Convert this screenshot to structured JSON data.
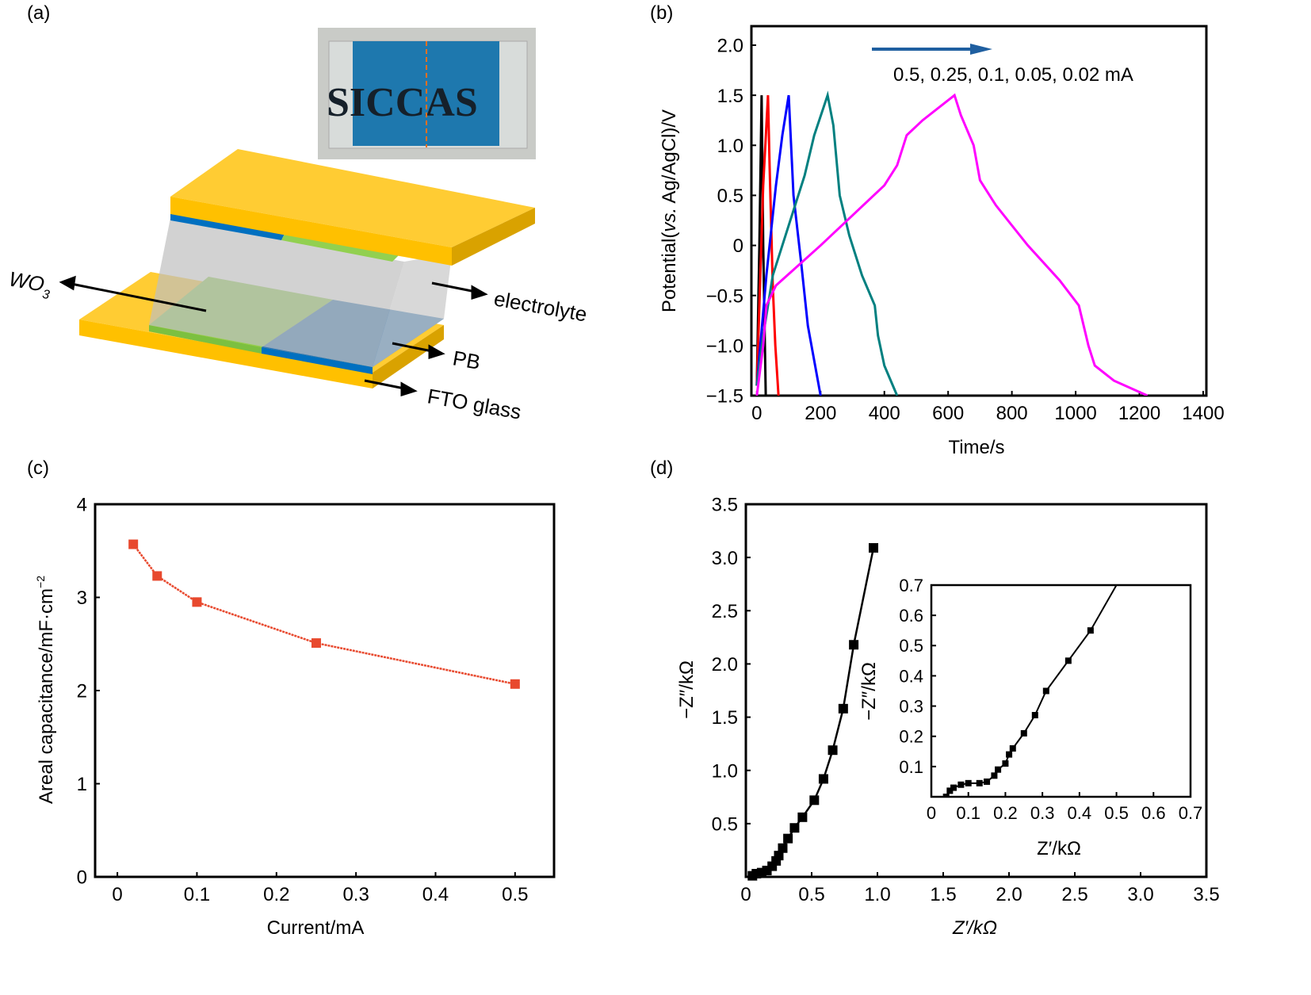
{
  "panel_labels": [
    "(a)",
    "(b)",
    "(c)",
    "(d)"
  ],
  "schematic": {
    "photo_text": "SICCAS",
    "labels": {
      "wo3": "WO",
      "wo3_sub": "3",
      "electrolyte": "electrolyte",
      "pb": "PB",
      "fto": "FTO glass"
    },
    "colors": {
      "fto": "#FFC000",
      "wo3": "#92D050",
      "pb": "#0070C0",
      "electrolyte": "#BFBFBF"
    }
  },
  "chart_data": [
    {
      "panel": "(b)",
      "type": "line",
      "xlabel": "Time/s",
      "ylabel_parts": [
        "Potential(",
        "vs.",
        "Ag/AgCl)/V"
      ],
      "xlim": [
        -17,
        1410
      ],
      "ylim": [
        -1.5,
        2.19
      ],
      "xticks": [
        0,
        200,
        400,
        600,
        800,
        1000,
        1200,
        1400
      ],
      "yticks": [
        -1.5,
        -1.0,
        -0.5,
        0,
        0.5,
        1.0,
        1.5,
        2.0
      ],
      "ytick_labels": [
        "−1.5",
        "−1.0",
        "−0.5",
        "0",
        "0.5",
        "1.0",
        "1.5",
        "2.0"
      ],
      "annotation": "0.5, 0.25, 0.1, 0.05, 0.02 mA",
      "arrow_color": "#1F5FA0",
      "series": [
        {
          "color": "#000000",
          "points": [
            [
              0,
              -1.4
            ],
            [
              8,
              0
            ],
            [
              15,
              1.5
            ],
            [
              20,
              0
            ],
            [
              28,
              -1.5
            ]
          ]
        },
        {
          "color": "#FF0000",
          "points": [
            [
              0,
              -1.4
            ],
            [
              10,
              -0.4
            ],
            [
              20,
              0.6
            ],
            [
              30,
              1.2
            ],
            [
              35,
              1.5
            ],
            [
              40,
              0.8
            ],
            [
              50,
              -0.4
            ],
            [
              58,
              -1.0
            ],
            [
              68,
              -1.5
            ]
          ]
        },
        {
          "color": "#0000FF",
          "points": [
            [
              0,
              -1.4
            ],
            [
              30,
              -0.3
            ],
            [
              60,
              0.6
            ],
            [
              80,
              1.1
            ],
            [
              100,
              1.5
            ],
            [
              115,
              0.5
            ],
            [
              140,
              -0.2
            ],
            [
              160,
              -0.8
            ],
            [
              200,
              -1.5
            ]
          ]
        },
        {
          "color": "#008080",
          "points": [
            [
              0,
              -1.4
            ],
            [
              20,
              -0.9
            ],
            [
              50,
              -0.3
            ],
            [
              100,
              0.2
            ],
            [
              150,
              0.7
            ],
            [
              180,
              1.1
            ],
            [
              222,
              1.5
            ],
            [
              240,
              1.2
            ],
            [
              260,
              0.5
            ],
            [
              290,
              0.1
            ],
            [
              330,
              -0.3
            ],
            [
              370,
              -0.6
            ],
            [
              380,
              -0.9
            ],
            [
              400,
              -1.2
            ],
            [
              440,
              -1.5
            ]
          ]
        },
        {
          "color": "#FF00FF",
          "points": [
            [
              0,
              -1.5
            ],
            [
              20,
              -1.0
            ],
            [
              30,
              -0.6
            ],
            [
              60,
              -0.4
            ],
            [
              200,
              0.0
            ],
            [
              300,
              0.3
            ],
            [
              400,
              0.6
            ],
            [
              440,
              0.8
            ],
            [
              470,
              1.1
            ],
            [
              520,
              1.25
            ],
            [
              620,
              1.5
            ],
            [
              640,
              1.3
            ],
            [
              680,
              1.0
            ],
            [
              700,
              0.65
            ],
            [
              750,
              0.4
            ],
            [
              850,
              0.0
            ],
            [
              950,
              -0.35
            ],
            [
              1010,
              -0.6
            ],
            [
              1040,
              -1.0
            ],
            [
              1060,
              -1.2
            ],
            [
              1120,
              -1.35
            ],
            [
              1225,
              -1.5
            ]
          ]
        }
      ]
    },
    {
      "panel": "(c)",
      "type": "line",
      "xlabel": "Current/mA",
      "ylabel": "Areal capacitance/mF·cm",
      "ylabel_sup": "−2",
      "xlim": [
        -0.028,
        0.549
      ],
      "ylim": [
        0,
        4
      ],
      "xticks": [
        0,
        0.1,
        0.2,
        0.3,
        0.4,
        0.5
      ],
      "xtick_labels": [
        "0",
        "0.1",
        "0.2",
        "0.3",
        "0.4",
        "0.5"
      ],
      "yticks": [
        0,
        1,
        2,
        3,
        4
      ],
      "ytick_labels": [
        "0",
        "1",
        "2",
        "3",
        "4"
      ],
      "series": [
        {
          "color": "#E8492E",
          "marker": "square",
          "points": [
            [
              0.02,
              3.57
            ],
            [
              0.05,
              3.23
            ],
            [
              0.1,
              2.95
            ],
            [
              0.25,
              2.51
            ],
            [
              0.5,
              2.07
            ]
          ]
        }
      ]
    },
    {
      "panel": "(d)",
      "type": "scatter",
      "xlabel": "Z′/kΩ",
      "ylabel": "−Z″/kΩ",
      "xlim": [
        0,
        3.5
      ],
      "ylim": [
        0,
        3.5
      ],
      "xticks": [
        0,
        0.5,
        1.0,
        1.5,
        2.0,
        2.5,
        3.0,
        3.5
      ],
      "xtick_labels": [
        "0",
        "0.5",
        "1.0",
        "1.5",
        "2.0",
        "2.5",
        "3.0",
        "3.5"
      ],
      "yticks": [
        0.5,
        1.0,
        1.5,
        2.0,
        2.5,
        3.0,
        3.5
      ],
      "ytick_labels": [
        "0.5",
        "1.0",
        "1.5",
        "2.0",
        "2.5",
        "3.0",
        "3.5"
      ],
      "series": [
        {
          "color": "#000000",
          "marker": "square",
          "points": [
            [
              0.05,
              0.01
            ],
            [
              0.08,
              0.03
            ],
            [
              0.12,
              0.04
            ],
            [
              0.16,
              0.06
            ],
            [
              0.2,
              0.1
            ],
            [
              0.23,
              0.15
            ],
            [
              0.25,
              0.2
            ],
            [
              0.28,
              0.27
            ],
            [
              0.32,
              0.36
            ],
            [
              0.37,
              0.46
            ],
            [
              0.43,
              0.56
            ],
            [
              0.52,
              0.72
            ],
            [
              0.59,
              0.92
            ],
            [
              0.66,
              1.19
            ],
            [
              0.74,
              1.58
            ],
            [
              0.82,
              2.18
            ],
            [
              0.97,
              3.09
            ]
          ]
        }
      ],
      "inset": {
        "xlabel": "Z′/kΩ",
        "ylabel": "−Z″/kΩ",
        "xlim": [
          0,
          0.7
        ],
        "ylim": [
          0,
          0.7
        ],
        "xticks": [
          0,
          0.1,
          0.2,
          0.3,
          0.4,
          0.5,
          0.6,
          0.7
        ],
        "xtick_labels": [
          "0",
          "0.1",
          "0.2",
          "0.3",
          "0.4",
          "0.5",
          "0.6",
          "0.7"
        ],
        "yticks": [
          0.1,
          0.2,
          0.3,
          0.4,
          0.5,
          0.6,
          0.7
        ],
        "ytick_labels": [
          "0.1",
          "0.2",
          "0.3",
          "0.4",
          "0.5",
          "0.6",
          "0.7"
        ],
        "points": [
          [
            0.04,
            0.0
          ],
          [
            0.05,
            0.02
          ],
          [
            0.06,
            0.03
          ],
          [
            0.08,
            0.04
          ],
          [
            0.1,
            0.045
          ],
          [
            0.13,
            0.045
          ],
          [
            0.15,
            0.05
          ],
          [
            0.17,
            0.07
          ],
          [
            0.18,
            0.09
          ],
          [
            0.2,
            0.11
          ],
          [
            0.21,
            0.14
          ],
          [
            0.22,
            0.16
          ],
          [
            0.25,
            0.21
          ],
          [
            0.28,
            0.27
          ],
          [
            0.31,
            0.35
          ],
          [
            0.37,
            0.45
          ],
          [
            0.43,
            0.55
          ],
          [
            0.5,
            0.7
          ]
        ]
      }
    }
  ]
}
